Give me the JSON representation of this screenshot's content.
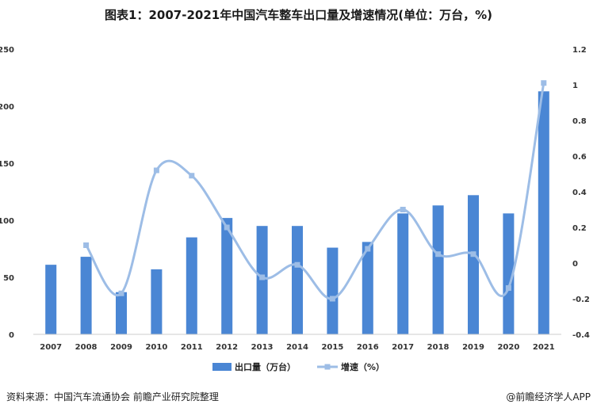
{
  "title": "图表1：2007-2021年中国汽车整车出口量及增速情况(单位：万台，%)",
  "source": "资料来源：中国汽车流通协会 前瞻产业研究院整理",
  "credit": "@前瞻经济学人APP",
  "chart_data": {
    "type": "bar",
    "categories": [
      "2007",
      "2008",
      "2009",
      "2010",
      "2011",
      "2012",
      "2013",
      "2014",
      "2015",
      "2016",
      "2017",
      "2018",
      "2019",
      "2020",
      "2021"
    ],
    "series": [
      {
        "name": "出口量（万台）",
        "type": "bar",
        "axis": "left",
        "color": "#4a86d4",
        "values": [
          61,
          68,
          37,
          57,
          85,
          102,
          95,
          95,
          76,
          81,
          106,
          113,
          122,
          106,
          213
        ]
      },
      {
        "name": "增速（%）",
        "type": "line",
        "axis": "right",
        "color": "#9dbde6",
        "values": [
          null,
          0.1,
          -0.17,
          0.52,
          0.49,
          0.2,
          -0.08,
          -0.01,
          -0.2,
          0.08,
          0.3,
          0.05,
          0.05,
          -0.14,
          1.01
        ]
      }
    ],
    "y_left": {
      "min": 0,
      "max": 250,
      "ticks": [
        "0",
        "50",
        "100",
        "150",
        "200",
        "250"
      ]
    },
    "y_right": {
      "min": -0.4,
      "max": 1.2,
      "ticks": [
        "-0.4",
        "-0.2",
        "0",
        "0.2",
        "0.4",
        "0.6",
        "0.8",
        "1",
        "1.2"
      ]
    },
    "legend_position": "bottom",
    "grid": false
  }
}
